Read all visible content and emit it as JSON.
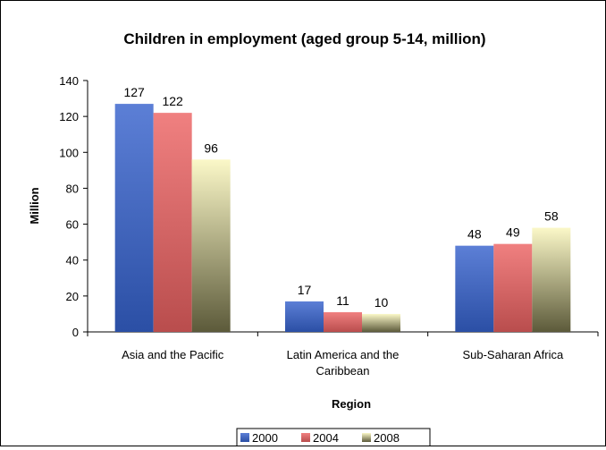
{
  "chart_data": {
    "type": "bar",
    "title": "Children in employment (aged group 5-14, million)",
    "xlabel": "Region",
    "ylabel": "Million",
    "categories": [
      [
        "Asia and the Pacific"
      ],
      [
        "Latin America and the",
        "Caribbean"
      ],
      [
        "Sub-Saharan Africa"
      ]
    ],
    "series": [
      {
        "name": "2000",
        "values": [
          127,
          17,
          48
        ]
      },
      {
        "name": "2004",
        "values": [
          122,
          11,
          49
        ]
      },
      {
        "name": "2008",
        "values": [
          96,
          10,
          58
        ]
      }
    ],
    "ylim": [
      0,
      140
    ],
    "yticks": [
      0,
      20,
      40,
      60,
      80,
      100,
      120,
      140
    ],
    "grid": false,
    "legend_position": "bottom",
    "colors": {
      "2000": [
        "#2b4fa5",
        "#5c7fd6"
      ],
      "2004": [
        "#b94d4d",
        "#f08080"
      ],
      "2008": [
        "#5c5a3a",
        "#fbf8c8"
      ]
    }
  }
}
